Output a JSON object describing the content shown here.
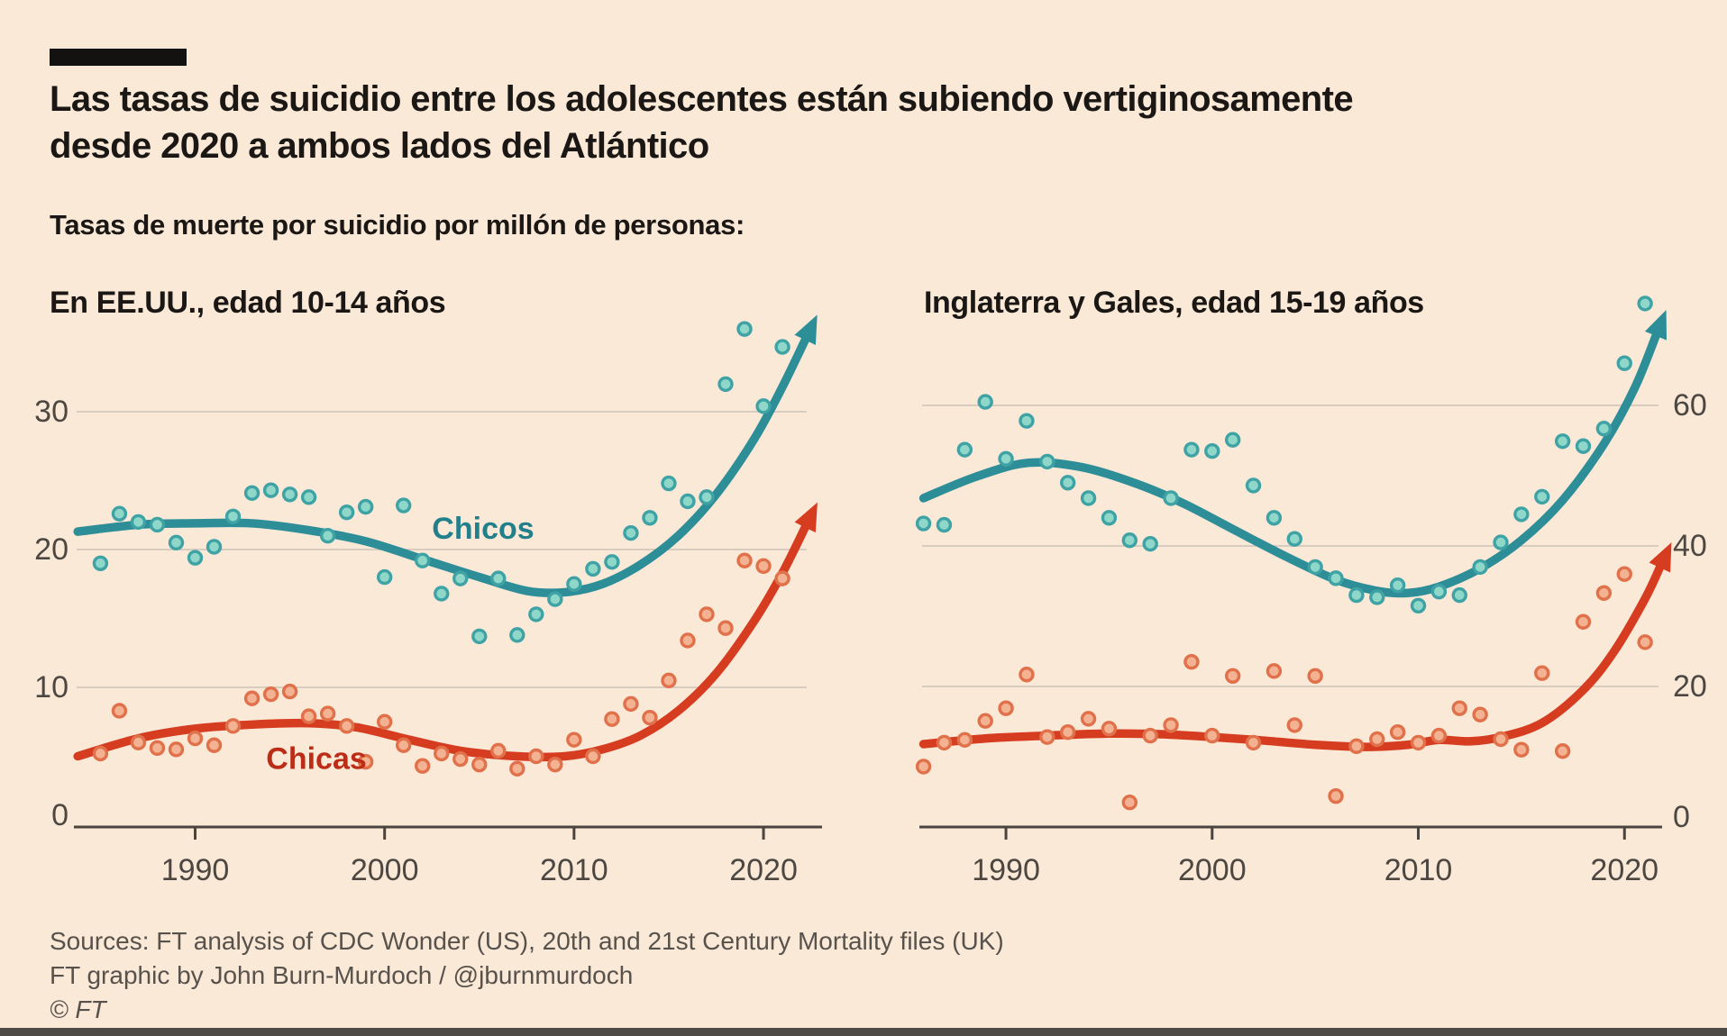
{
  "header": {
    "title_line1": "Las tasas de suicidio entre los adolescentes están subiendo vertiginosamente",
    "title_line2": "desde 2020 a ambos lados del Atlántico",
    "subtitle": "Tasas de muerte por suicidio por millón de personas:"
  },
  "panels": [
    {
      "title": "En EE.UU., edad 10-14 años"
    },
    {
      "title": "Inglaterra y Gales, edad 15-19 años"
    }
  ],
  "source": {
    "line1": "Sources: FT analysis of CDC Wonder (US), 20th and 21st Century Mortality files (UK)",
    "line2": "FT graphic by John Burn-Murdoch / @jburnmurdoch",
    "line3": "© FT"
  },
  "colors": {
    "background": "#fbe9d8",
    "title_text": "#1a1714",
    "axis_text": "#4d4742",
    "grid": "#ccc2b7",
    "axis": "#4a443e",
    "boys_line": "#2d8e97",
    "boys_dot_fill": "#8ed7c9",
    "boys_dot_ring": "#3fa3a6",
    "boys_label": "#22808d",
    "girls_line": "#d63d20",
    "girls_dot_fill": "#f3b292",
    "girls_dot_ring": "#e0714b",
    "girls_label": "#bb2d17",
    "source_text": "#57524c",
    "bottom_bar": "#4e4a46"
  },
  "chart_data": [
    {
      "type": "scatter",
      "title": "En EE.UU., edad 10-14 años",
      "xlabel": "",
      "ylabel": "Tasas de muerte por suicidio por millón de personas",
      "grid": true,
      "y_axis_side": "left",
      "xlim": [
        1983.6,
        2022.9
      ],
      "ylim": [
        0,
        38
      ],
      "x_ticks": [
        1990,
        2000,
        2010,
        2020
      ],
      "y_ticks": [
        0,
        10,
        20,
        30
      ],
      "series": [
        {
          "name": "Chicas",
          "color": "girls",
          "label": {
            "text": "Chicas",
            "year": 1996.4,
            "value": 4.8
          },
          "years": [
            1985,
            1986,
            1987,
            1988,
            1989,
            1990,
            1991,
            1992,
            1993,
            1994,
            1995,
            1996,
            1997,
            1998,
            1999,
            2000,
            2001,
            2002,
            2003,
            2004,
            2005,
            2006,
            2007,
            2008,
            2009,
            2010,
            2011,
            2012,
            2013,
            2014,
            2015,
            2016,
            2017,
            2018,
            2019,
            2020,
            2021
          ],
          "values": [
            5.2,
            8.3,
            6.0,
            5.6,
            5.5,
            6.3,
            5.8,
            7.2,
            9.2,
            9.5,
            9.7,
            7.9,
            8.1,
            7.2,
            4.6,
            7.5,
            5.8,
            4.3,
            5.2,
            4.8,
            4.4,
            5.4,
            4.1,
            5.0,
            4.4,
            6.2,
            5.0,
            7.7,
            8.8,
            7.8,
            10.5,
            13.4,
            15.3,
            14.3,
            19.2,
            18.8,
            17.9
          ],
          "trend": [
            [
              1983.8,
              5.0
            ],
            [
              1987,
              6.3
            ],
            [
              1990,
              7.0
            ],
            [
              1993,
              7.3
            ],
            [
              1996,
              7.4
            ],
            [
              1998.5,
              7.1
            ],
            [
              2001,
              6.3
            ],
            [
              2004,
              5.4
            ],
            [
              2007,
              5.0
            ],
            [
              2009.5,
              5.0
            ],
            [
              2011.5,
              5.5
            ],
            [
              2013.5,
              6.5
            ],
            [
              2015.5,
              8.3
            ],
            [
              2017.5,
              11.0
            ],
            [
              2019.5,
              14.8
            ],
            [
              2021,
              18.3
            ],
            [
              2022.3,
              21.9
            ]
          ]
        },
        {
          "name": "Chicos",
          "color": "boys",
          "label": {
            "text": "Chicos",
            "year": 2005.2,
            "value": 21.5
          },
          "years": [
            1985,
            1986,
            1987,
            1988,
            1989,
            1990,
            1991,
            1992,
            1993,
            1994,
            1995,
            1996,
            1997,
            1998,
            1999,
            2000,
            2001,
            2002,
            2003,
            2004,
            2005,
            2006,
            2007,
            2008,
            2009,
            2010,
            2011,
            2012,
            2013,
            2014,
            2015,
            2016,
            2017,
            2018,
            2019,
            2020,
            2021
          ],
          "values": [
            19.0,
            22.6,
            22.0,
            21.8,
            20.5,
            19.4,
            20.2,
            22.4,
            24.1,
            24.3,
            24.0,
            23.8,
            21.0,
            22.7,
            23.1,
            18.0,
            23.2,
            19.2,
            16.8,
            17.9,
            13.7,
            17.9,
            13.8,
            15.3,
            16.4,
            17.5,
            18.6,
            19.1,
            21.2,
            22.3,
            24.8,
            23.5,
            23.8,
            32.0,
            36.0,
            30.4,
            34.7
          ],
          "trend": [
            [
              1983.8,
              21.3
            ],
            [
              1987,
              21.8
            ],
            [
              1990,
              21.9
            ],
            [
              1993,
              21.9
            ],
            [
              1996,
              21.4
            ],
            [
              1999,
              20.6
            ],
            [
              2002,
              19.3
            ],
            [
              2005,
              18.0
            ],
            [
              2007.5,
              17.0
            ],
            [
              2009.5,
              16.9
            ],
            [
              2011.5,
              17.5
            ],
            [
              2013.5,
              18.9
            ],
            [
              2015.5,
              21.0
            ],
            [
              2017.5,
              24.0
            ],
            [
              2019.5,
              28.0
            ],
            [
              2021,
              31.8
            ],
            [
              2022.3,
              35.5
            ]
          ]
        }
      ]
    },
    {
      "type": "scatter",
      "title": "Inglaterra y Gales, edad 15-19 años",
      "xlabel": "",
      "ylabel": "Tasas de muerte por suicidio por millón de personas",
      "grid": true,
      "y_axis_side": "right",
      "xlim": [
        1985.8,
        2022.0
      ],
      "ylim": [
        0,
        78
      ],
      "x_ticks": [
        1990,
        2000,
        2010,
        2020
      ],
      "y_ticks": [
        0,
        20,
        40,
        60
      ],
      "series": [
        {
          "name": "Chicas",
          "color": "girls",
          "label": null,
          "years": [
            1986,
            1987,
            1988,
            1989,
            1990,
            1991,
            1992,
            1993,
            1994,
            1995,
            1996,
            1997,
            1998,
            1999,
            2000,
            2001,
            2002,
            2003,
            2004,
            2005,
            2006,
            2007,
            2008,
            2009,
            2010,
            2011,
            2012,
            2013,
            2014,
            2015,
            2016,
            2017,
            2018,
            2019,
            2020,
            2021
          ],
          "values": [
            8.6,
            12.0,
            12.4,
            15.1,
            16.9,
            21.7,
            12.8,
            13.5,
            15.4,
            14.0,
            3.5,
            13.0,
            14.5,
            23.5,
            13.0,
            21.5,
            12.0,
            22.2,
            14.5,
            21.5,
            4.4,
            11.5,
            12.5,
            13.5,
            12.0,
            13.0,
            16.9,
            16.0,
            12.5,
            11.0,
            21.9,
            10.8,
            29.2,
            33.3,
            36.0,
            26.3
          ],
          "trend": [
            [
              1986,
              11.8
            ],
            [
              1989,
              12.6
            ],
            [
              1992,
              13.0
            ],
            [
              1995,
              13.3
            ],
            [
              1997.5,
              13.2
            ],
            [
              2000,
              12.8
            ],
            [
              2002.5,
              12.3
            ],
            [
              2005,
              11.7
            ],
            [
              2007.5,
              11.4
            ],
            [
              2009.5,
              11.7
            ],
            [
              2011,
              12.4
            ],
            [
              2012.5,
              12.2
            ],
            [
              2014,
              12.8
            ],
            [
              2016,
              14.8
            ],
            [
              2018,
              19.5
            ],
            [
              2019.5,
              25.0
            ],
            [
              2021,
              32.5
            ],
            [
              2021.8,
              37.5
            ]
          ]
        },
        {
          "name": "Chicos",
          "color": "boys",
          "label": null,
          "years": [
            1986,
            1987,
            1988,
            1989,
            1990,
            1991,
            1992,
            1993,
            1994,
            1995,
            1996,
            1997,
            1998,
            1999,
            2000,
            2001,
            2002,
            2003,
            2004,
            2005,
            2006,
            2007,
            2008,
            2009,
            2010,
            2011,
            2012,
            2013,
            2014,
            2015,
            2016,
            2017,
            2018,
            2019,
            2020,
            2021
          ],
          "values": [
            43.2,
            43.0,
            53.7,
            60.5,
            52.4,
            57.8,
            52.0,
            49.0,
            46.8,
            44.0,
            40.8,
            40.3,
            46.8,
            53.7,
            53.5,
            55.1,
            48.6,
            44.0,
            41.0,
            37.0,
            35.4,
            33.0,
            32.7,
            34.4,
            31.5,
            33.5,
            33.0,
            37.0,
            40.5,
            44.5,
            47.0,
            54.9,
            54.2,
            56.7,
            66.0,
            74.5
          ],
          "trend": [
            [
              1986,
              46.8
            ],
            [
              1988.5,
              49.8
            ],
            [
              1991,
              51.8
            ],
            [
              1993.5,
              51.3
            ],
            [
              1996,
              49.2
            ],
            [
              1998.5,
              46.2
            ],
            [
              2001,
              42.4
            ],
            [
              2003.5,
              38.6
            ],
            [
              2006,
              35.2
            ],
            [
              2008,
              33.6
            ],
            [
              2009.5,
              33.3
            ],
            [
              2011,
              34.2
            ],
            [
              2013,
              36.8
            ],
            [
              2015,
              40.8
            ],
            [
              2017,
              46.5
            ],
            [
              2019,
              54.5
            ],
            [
              2020.5,
              62.5
            ],
            [
              2021.6,
              70.5
            ]
          ]
        }
      ]
    }
  ]
}
